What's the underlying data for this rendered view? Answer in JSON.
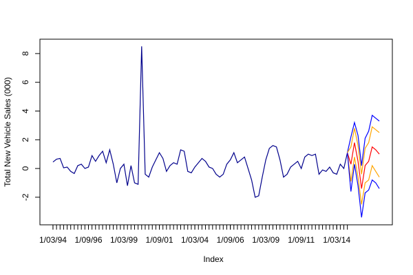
{
  "chart_data": {
    "type": "line",
    "xlabel": "Index",
    "ylabel": "Total New Vehicle Sales (000)",
    "xlim": [
      -2.68,
      96.68
    ],
    "ylim": [
      -3.92,
      9.0
    ],
    "yticks": [
      -2,
      0,
      2,
      4,
      6,
      8
    ],
    "xticks": [
      {
        "value": 1,
        "label": "1/03/94"
      },
      {
        "value": 11,
        "label": "1/09/96"
      },
      {
        "value": 21,
        "label": "1/03/99"
      },
      {
        "value": 31,
        "label": "1/09/01"
      },
      {
        "value": 41,
        "label": "1/03/04"
      },
      {
        "value": 51,
        "label": "1/09/06"
      },
      {
        "value": 61,
        "label": "1/03/09"
      },
      {
        "value": 71,
        "label": "1/09/11"
      },
      {
        "value": 81,
        "label": "1/03/14"
      }
    ],
    "series": [
      {
        "color": "#00008b",
        "x": [
          1,
          2,
          3,
          4,
          5,
          6,
          7,
          8,
          9,
          10,
          11,
          12,
          13,
          14,
          15,
          16,
          17,
          18,
          19,
          20,
          21,
          22,
          23,
          24,
          25,
          26,
          27,
          28,
          29,
          30,
          31,
          32,
          33,
          34,
          35,
          36,
          37,
          38,
          39,
          40,
          41,
          42,
          43,
          44,
          45,
          46,
          47,
          48,
          49,
          50,
          51,
          52,
          53,
          54,
          55,
          56,
          57,
          58,
          59,
          60,
          61,
          62,
          63,
          64,
          65,
          66,
          67,
          68,
          69,
          70,
          71,
          72,
          73,
          74,
          75,
          76,
          77,
          78,
          79,
          80,
          81,
          82,
          83,
          84
        ],
        "values": [
          0.45,
          0.65,
          0.7,
          0.05,
          0.1,
          -0.2,
          -0.35,
          0.2,
          0.3,
          0.0,
          0.1,
          0.9,
          0.5,
          0.9,
          1.2,
          0.4,
          1.3,
          0.3,
          -1.0,
          0.0,
          0.3,
          -1.2,
          0.2,
          -1.0,
          -1.1,
          8.5,
          -0.4,
          -0.6,
          0.1,
          0.6,
          1.1,
          0.7,
          -0.2,
          0.2,
          0.4,
          0.3,
          1.3,
          1.2,
          -0.2,
          -0.3,
          0.1,
          0.4,
          0.7,
          0.5,
          0.1,
          0.0,
          -0.4,
          -0.6,
          -0.4,
          0.3,
          0.6,
          1.1,
          0.4,
          0.6,
          0.8,
          0.0,
          -0.8,
          -2.0,
          -1.9,
          -0.6,
          0.6,
          1.4,
          1.6,
          1.5,
          0.6,
          -0.6,
          -0.4,
          0.1,
          0.3,
          0.5,
          0.0,
          0.8,
          1.0,
          0.9,
          1.0,
          -0.4,
          -0.1,
          -0.2,
          0.1,
          -0.3,
          -0.4,
          0.3,
          0.0,
          1.1
        ]
      },
      {
        "color": "#0000ff",
        "x": [
          84,
          85,
          86,
          87,
          88,
          89,
          90,
          91,
          92,
          93
        ],
        "values": [
          1.1,
          2.2,
          3.2,
          2.3,
          0.2,
          2.1,
          2.6,
          3.7,
          3.5,
          3.3
        ]
      },
      {
        "color": "#ffa500",
        "x": [
          84,
          85,
          86,
          87,
          88,
          89,
          90,
          91,
          92,
          93
        ],
        "values": [
          1.1,
          1.5,
          2.8,
          1.6,
          -0.4,
          1.4,
          1.8,
          2.9,
          2.7,
          2.5
        ]
      },
      {
        "color": "#ff0000",
        "x": [
          84,
          85,
          86,
          87,
          88,
          89,
          90,
          91,
          92,
          93
        ],
        "values": [
          1.1,
          0.3,
          1.8,
          0.5,
          -1.4,
          0.2,
          0.5,
          1.5,
          1.3,
          1.0
        ]
      },
      {
        "color": "#ffa500",
        "x": [
          84,
          85,
          86,
          87,
          88,
          89,
          90,
          91,
          92,
          93
        ],
        "values": [
          1.1,
          -0.9,
          0.8,
          -0.6,
          -2.5,
          -1.0,
          -0.8,
          0.2,
          -0.2,
          -0.6
        ]
      },
      {
        "color": "#0000ff",
        "x": [
          84,
          85,
          86,
          87,
          88,
          89,
          90,
          91,
          92,
          93
        ],
        "values": [
          1.1,
          -1.6,
          0.3,
          -1.2,
          -3.4,
          -1.7,
          -1.5,
          -0.8,
          -1.0,
          -1.4
        ]
      }
    ]
  }
}
